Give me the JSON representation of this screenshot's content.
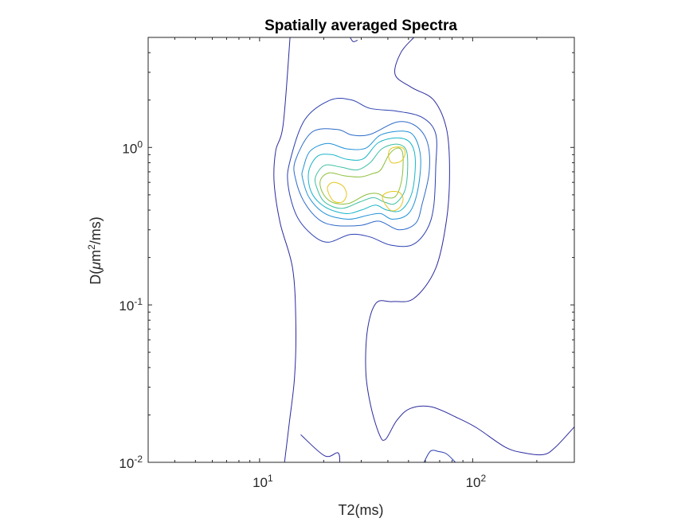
{
  "chart_data": {
    "type": "contour",
    "title": "Spatially averaged Spectra",
    "xlabel": "T2(ms)",
    "ylabel_parts": [
      "D(",
      "μ",
      "m",
      "2",
      "/ms)"
    ],
    "xscale": "log",
    "yscale": "log",
    "xlim": [
      3,
      300
    ],
    "ylim": [
      0.01,
      5
    ],
    "x_ticks": [
      {
        "value": 10,
        "base": "10",
        "exp": "1"
      },
      {
        "value": 100,
        "base": "10",
        "exp": "2"
      }
    ],
    "y_ticks": [
      {
        "value": 0.01,
        "base": "10",
        "exp": "-2"
      },
      {
        "value": 0.1,
        "base": "10",
        "exp": "-1"
      },
      {
        "value": 1,
        "base": "10",
        "exp": "0"
      }
    ],
    "grid": false,
    "contours": [
      {
        "color": "#2b2b9f",
        "paths": [
          [
            [
              13.9,
              5
            ],
            [
              12.9,
              1.4
            ],
            [
              11.9,
              0.95
            ],
            [
              11.7,
              0.6
            ],
            [
              12.5,
              0.33
            ],
            [
              14.3,
              0.17
            ],
            [
              14.8,
              0.075
            ],
            [
              14.6,
              0.035
            ],
            [
              13.8,
              0.018
            ],
            [
              13.1,
              0.01
            ]
          ],
          [
            [
              15.6,
              0.015
            ],
            [
              20.2,
              0.011
            ],
            [
              23.3,
              0.0115
            ],
            [
              23.8,
              0.01
            ]
          ],
          [
            [
              26.6,
              5
            ],
            [
              27.5,
              4.7
            ],
            [
              28.8,
              4.8
            ]
          ],
          [
            [
              53,
              5
            ],
            [
              46,
              4
            ],
            [
              43.3,
              2.9
            ],
            [
              51.8,
              2.4
            ],
            [
              65.6,
              2
            ],
            [
              75.5,
              1.3
            ],
            [
              77.9,
              0.7
            ],
            [
              75.5,
              0.35
            ],
            [
              67,
              0.17
            ],
            [
              53,
              0.11
            ],
            [
              42,
              0.105
            ],
            [
              35.3,
              0.103
            ],
            [
              32.1,
              0.07
            ],
            [
              31.5,
              0.038
            ],
            [
              33.2,
              0.023
            ],
            [
              36.5,
              0.015
            ],
            [
              39,
              0.014
            ],
            [
              44.1,
              0.0185
            ],
            [
              51,
              0.022
            ],
            [
              64,
              0.0225
            ],
            [
              86,
              0.019
            ],
            [
              105,
              0.0165
            ],
            [
              142,
              0.0125
            ],
            [
              173,
              0.0115
            ],
            [
              215,
              0.0112
            ],
            [
              245,
              0.0125
            ],
            [
              300,
              0.0168
            ]
          ]
        ]
      },
      {
        "color": "#2b3fb0",
        "paths": [
          [
            [
              13.9,
              0.82
            ],
            [
              16.3,
              1.5
            ],
            [
              21.5,
              2
            ],
            [
              27.1,
              2
            ],
            [
              33,
              1.77
            ],
            [
              44.1,
              1.7
            ],
            [
              58,
              1.55
            ],
            [
              67.1,
              1.22
            ],
            [
              67.1,
              0.75
            ],
            [
              65.6,
              0.42
            ],
            [
              60.9,
              0.3
            ],
            [
              51.8,
              0.24
            ],
            [
              41,
              0.24
            ],
            [
              33,
              0.27
            ],
            [
              26.6,
              0.28
            ],
            [
              21,
              0.25
            ],
            [
              17.6,
              0.28
            ],
            [
              14.9,
              0.37
            ],
            [
              13.6,
              0.58
            ],
            [
              13.9,
              0.82
            ]
          ],
          [
            [
              59.1,
              0.01
            ],
            [
              63.5,
              0.0118
            ],
            [
              69.4,
              0.0117
            ],
            [
              75.5,
              0.0113
            ],
            [
              83,
              0.01
            ]
          ]
        ]
      },
      {
        "color": "#2d6ac8",
        "paths": [
          [
            [
              14.7,
              0.82
            ],
            [
              17.6,
              1.25
            ],
            [
              23.2,
              1.3
            ],
            [
              27.1,
              1.2
            ],
            [
              33,
              1.21
            ],
            [
              44.1,
              1.45
            ],
            [
              54,
              1.37
            ],
            [
              61.4,
              1.07
            ],
            [
              62.5,
              0.7
            ],
            [
              58,
              0.44
            ],
            [
              54,
              0.33
            ],
            [
              45,
              0.3
            ],
            [
              36.4,
              0.34
            ],
            [
              29.8,
              0.32
            ],
            [
              22.5,
              0.32
            ],
            [
              18.9,
              0.35
            ],
            [
              16.2,
              0.45
            ],
            [
              14.8,
              0.62
            ],
            [
              14.7,
              0.82
            ]
          ],
          [
            [
              98,
              0.01
            ],
            [
              101,
              0.0098
            ],
            [
              104,
              0.01
            ]
          ]
        ]
      },
      {
        "color": "#1f90d6",
        "paths": [
          [
            [
              16,
              0.73
            ],
            [
              17.3,
              0.95
            ],
            [
              20.9,
              1.06
            ],
            [
              25.6,
              0.98
            ],
            [
              31.5,
              0.99
            ],
            [
              37,
              1.2
            ],
            [
              47,
              1.27
            ],
            [
              53.3,
              1.17
            ],
            [
              57,
              0.85
            ],
            [
              55,
              0.52
            ],
            [
              50,
              0.38
            ],
            [
              42,
              0.35
            ],
            [
              37,
              0.38
            ],
            [
              32,
              0.37
            ],
            [
              26.1,
              0.35
            ],
            [
              20.3,
              0.38
            ],
            [
              17.1,
              0.48
            ],
            [
              15.9,
              0.64
            ],
            [
              16,
              0.73
            ]
          ]
        ]
      },
      {
        "color": "#19b4c8",
        "paths": [
          [
            [
              17,
              0.7
            ],
            [
              18.7,
              0.88
            ],
            [
              21.8,
              0.9
            ],
            [
              25.8,
              0.84
            ],
            [
              30.8,
              0.85
            ],
            [
              36,
              1.07
            ],
            [
              44.1,
              1.15
            ],
            [
              51,
              1.07
            ],
            [
              53.8,
              0.83
            ],
            [
              52,
              0.52
            ],
            [
              46.2,
              0.4
            ],
            [
              39.6,
              0.4
            ],
            [
              35,
              0.43
            ],
            [
              30,
              0.4
            ],
            [
              25.3,
              0.38
            ],
            [
              20.2,
              0.42
            ],
            [
              17.5,
              0.52
            ],
            [
              17,
              0.7
            ]
          ]
        ]
      },
      {
        "color": "#3cbfa0",
        "paths": [
          [
            [
              18.3,
              0.65
            ],
            [
              20.2,
              0.77
            ],
            [
              24.1,
              0.75
            ],
            [
              28.7,
              0.72
            ],
            [
              33,
              0.8
            ],
            [
              37.5,
              0.98
            ],
            [
              44.1,
              1.05
            ],
            [
              48.8,
              0.96
            ],
            [
              49.5,
              0.72
            ],
            [
              48,
              0.53
            ],
            [
              43.2,
              0.44
            ],
            [
              38.5,
              0.45
            ],
            [
              34.2,
              0.48
            ],
            [
              29.5,
              0.45
            ],
            [
              24.2,
              0.41
            ],
            [
              20.2,
              0.45
            ],
            [
              18.6,
              0.55
            ],
            [
              18.3,
              0.65
            ]
          ]
        ]
      },
      {
        "color": "#8cbf3c",
        "paths": [
          [
            [
              19.3,
              0.62
            ],
            [
              21.2,
              0.69
            ],
            [
              25.1,
              0.66
            ],
            [
              29.8,
              0.65
            ],
            [
              33.7,
              0.68
            ],
            [
              37,
              0.72
            ],
            [
              40.5,
              0.9
            ],
            [
              44.1,
              0.99
            ],
            [
              46.6,
              0.95
            ],
            [
              47.2,
              0.8
            ],
            [
              46.2,
              0.6
            ],
            [
              43.5,
              0.49
            ],
            [
              39.3,
              0.48
            ],
            [
              35.7,
              0.51
            ],
            [
              31.5,
              0.5
            ],
            [
              26.1,
              0.44
            ],
            [
              21.8,
              0.45
            ],
            [
              19.7,
              0.52
            ],
            [
              19.3,
              0.62
            ]
          ]
        ]
      },
      {
        "color": "#e5c61e",
        "paths": [
          [
            [
              20.8,
              0.55
            ],
            [
              22.1,
              0.6
            ],
            [
              24.6,
              0.57
            ],
            [
              25.6,
              0.5
            ],
            [
              24.4,
              0.45
            ],
            [
              22.1,
              0.46
            ],
            [
              20.8,
              0.55
            ]
          ],
          [
            [
              37.7,
              0.48
            ],
            [
              40.2,
              0.52
            ],
            [
              45,
              0.52
            ],
            [
              47.2,
              0.47
            ],
            [
              45,
              0.41
            ],
            [
              41,
              0.4
            ],
            [
              37.7,
              0.48
            ]
          ],
          [
            [
              40.2,
              0.9
            ],
            [
              41.7,
              0.99
            ],
            [
              46.5,
              1
            ],
            [
              48.2,
              0.92
            ],
            [
              46.2,
              0.82
            ],
            [
              41.7,
              0.8
            ],
            [
              40.2,
              0.9
            ]
          ]
        ]
      }
    ]
  }
}
